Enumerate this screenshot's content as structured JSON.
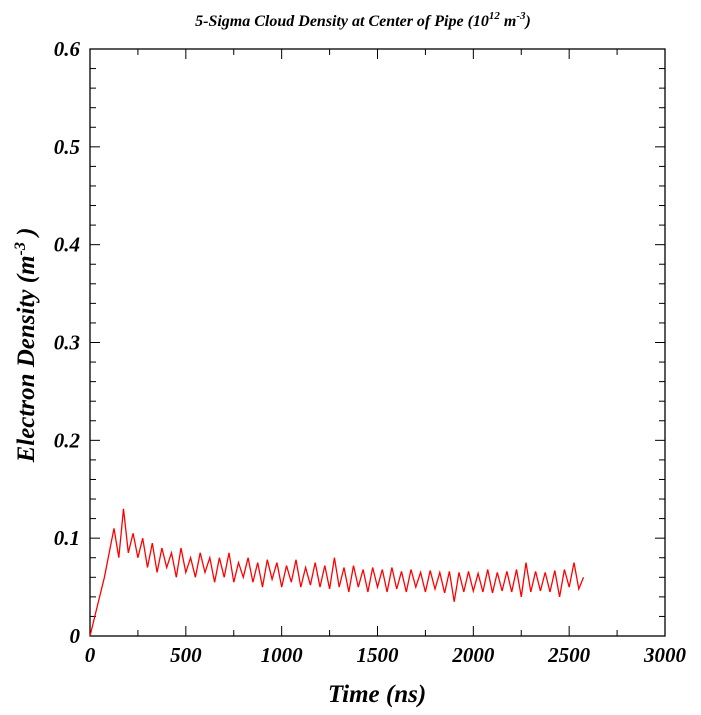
{
  "chart_data": {
    "type": "line",
    "title": "5-Sigma Cloud Density at Center of Pipe (10",
    "title_sup": "12",
    "title_unit": " m",
    "title_unit_sup": "-3",
    "title_close": ")",
    "xlabel": "Time (ns)",
    "ylabel": "Electron Density (m",
    "ylabel_sup": "-3",
    "ylabel_close": " )",
    "xlim": [
      0,
      3000
    ],
    "ylim": [
      0,
      0.6
    ],
    "x_ticks": [
      "0",
      "500",
      "1000",
      "1500",
      "2000",
      "2500",
      "3000"
    ],
    "y_ticks": [
      "0",
      "0.1",
      "0.2",
      "0.3",
      "0.4",
      "0.5",
      "0.6"
    ],
    "grid": false,
    "line_color": "#ff0000",
    "series": [
      {
        "x_start": 0,
        "x_step": 25,
        "values": [
          0.0,
          0.02,
          0.04,
          0.06,
          0.085,
          0.11,
          0.08,
          0.13,
          0.085,
          0.105,
          0.08,
          0.1,
          0.07,
          0.095,
          0.065,
          0.09,
          0.07,
          0.085,
          0.06,
          0.09,
          0.065,
          0.08,
          0.06,
          0.085,
          0.065,
          0.08,
          0.055,
          0.08,
          0.06,
          0.085,
          0.055,
          0.075,
          0.06,
          0.08,
          0.055,
          0.075,
          0.05,
          0.078,
          0.058,
          0.075,
          0.05,
          0.072,
          0.055,
          0.078,
          0.05,
          0.07,
          0.052,
          0.075,
          0.05,
          0.072,
          0.048,
          0.08,
          0.05,
          0.07,
          0.045,
          0.072,
          0.05,
          0.068,
          0.045,
          0.07,
          0.05,
          0.068,
          0.045,
          0.07,
          0.048,
          0.066,
          0.045,
          0.068,
          0.05,
          0.065,
          0.045,
          0.067,
          0.048,
          0.065,
          0.044,
          0.066,
          0.035,
          0.065,
          0.045,
          0.066,
          0.046,
          0.064,
          0.045,
          0.068,
          0.044,
          0.065,
          0.046,
          0.066,
          0.045,
          0.068,
          0.04,
          0.075,
          0.045,
          0.066,
          0.046,
          0.065,
          0.045,
          0.067,
          0.04,
          0.068,
          0.05,
          0.075,
          0.048,
          0.06
        ]
      }
    ]
  }
}
